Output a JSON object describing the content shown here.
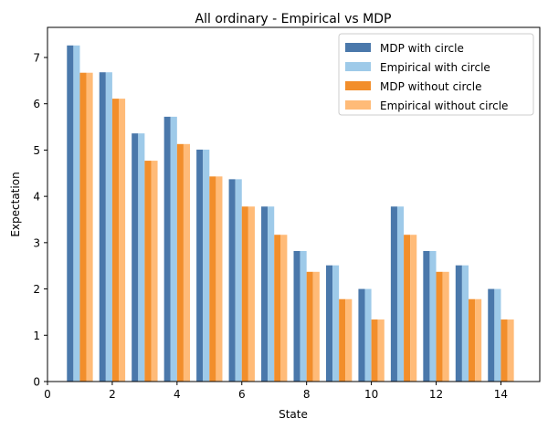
{
  "chart_data": {
    "type": "bar",
    "title": "All ordinary - Empirical vs MDP",
    "xlabel": "State",
    "ylabel": "Expectation",
    "xlim": [
      0,
      15.2
    ],
    "ylim": [
      0,
      7.65
    ],
    "xticks": [
      0,
      2,
      4,
      6,
      8,
      10,
      12,
      14
    ],
    "yticks": [
      0,
      1,
      2,
      3,
      4,
      5,
      6,
      7
    ],
    "grid": false,
    "legend_position": "top-right",
    "x": [
      1,
      2,
      3,
      4,
      5,
      6,
      7,
      8,
      9,
      10,
      11,
      12,
      13,
      14
    ],
    "series": [
      {
        "name": "MDP with circle",
        "color": "#4a78ab",
        "values": [
          7.26,
          6.68,
          5.36,
          5.72,
          5.01,
          4.37,
          3.78,
          2.82,
          2.51,
          2.0,
          3.78,
          2.82,
          2.51,
          2.0
        ]
      },
      {
        "name": "Empirical with circle",
        "color": "#9ecae9",
        "values": [
          7.26,
          6.68,
          5.36,
          5.72,
          5.01,
          4.37,
          3.78,
          2.82,
          2.51,
          2.0,
          3.78,
          2.82,
          2.51,
          2.0
        ]
      },
      {
        "name": "MDP without circle",
        "color": "#f28e2b",
        "values": [
          6.67,
          6.11,
          4.77,
          5.13,
          4.43,
          3.78,
          3.17,
          2.37,
          1.78,
          1.34,
          3.17,
          2.37,
          1.78,
          1.34
        ]
      },
      {
        "name": "Empirical without circle",
        "color": "#ffbb78",
        "values": [
          6.67,
          6.11,
          4.77,
          5.13,
          4.43,
          3.78,
          3.17,
          2.37,
          1.78,
          1.34,
          3.17,
          2.37,
          1.78,
          1.34
        ]
      }
    ]
  }
}
